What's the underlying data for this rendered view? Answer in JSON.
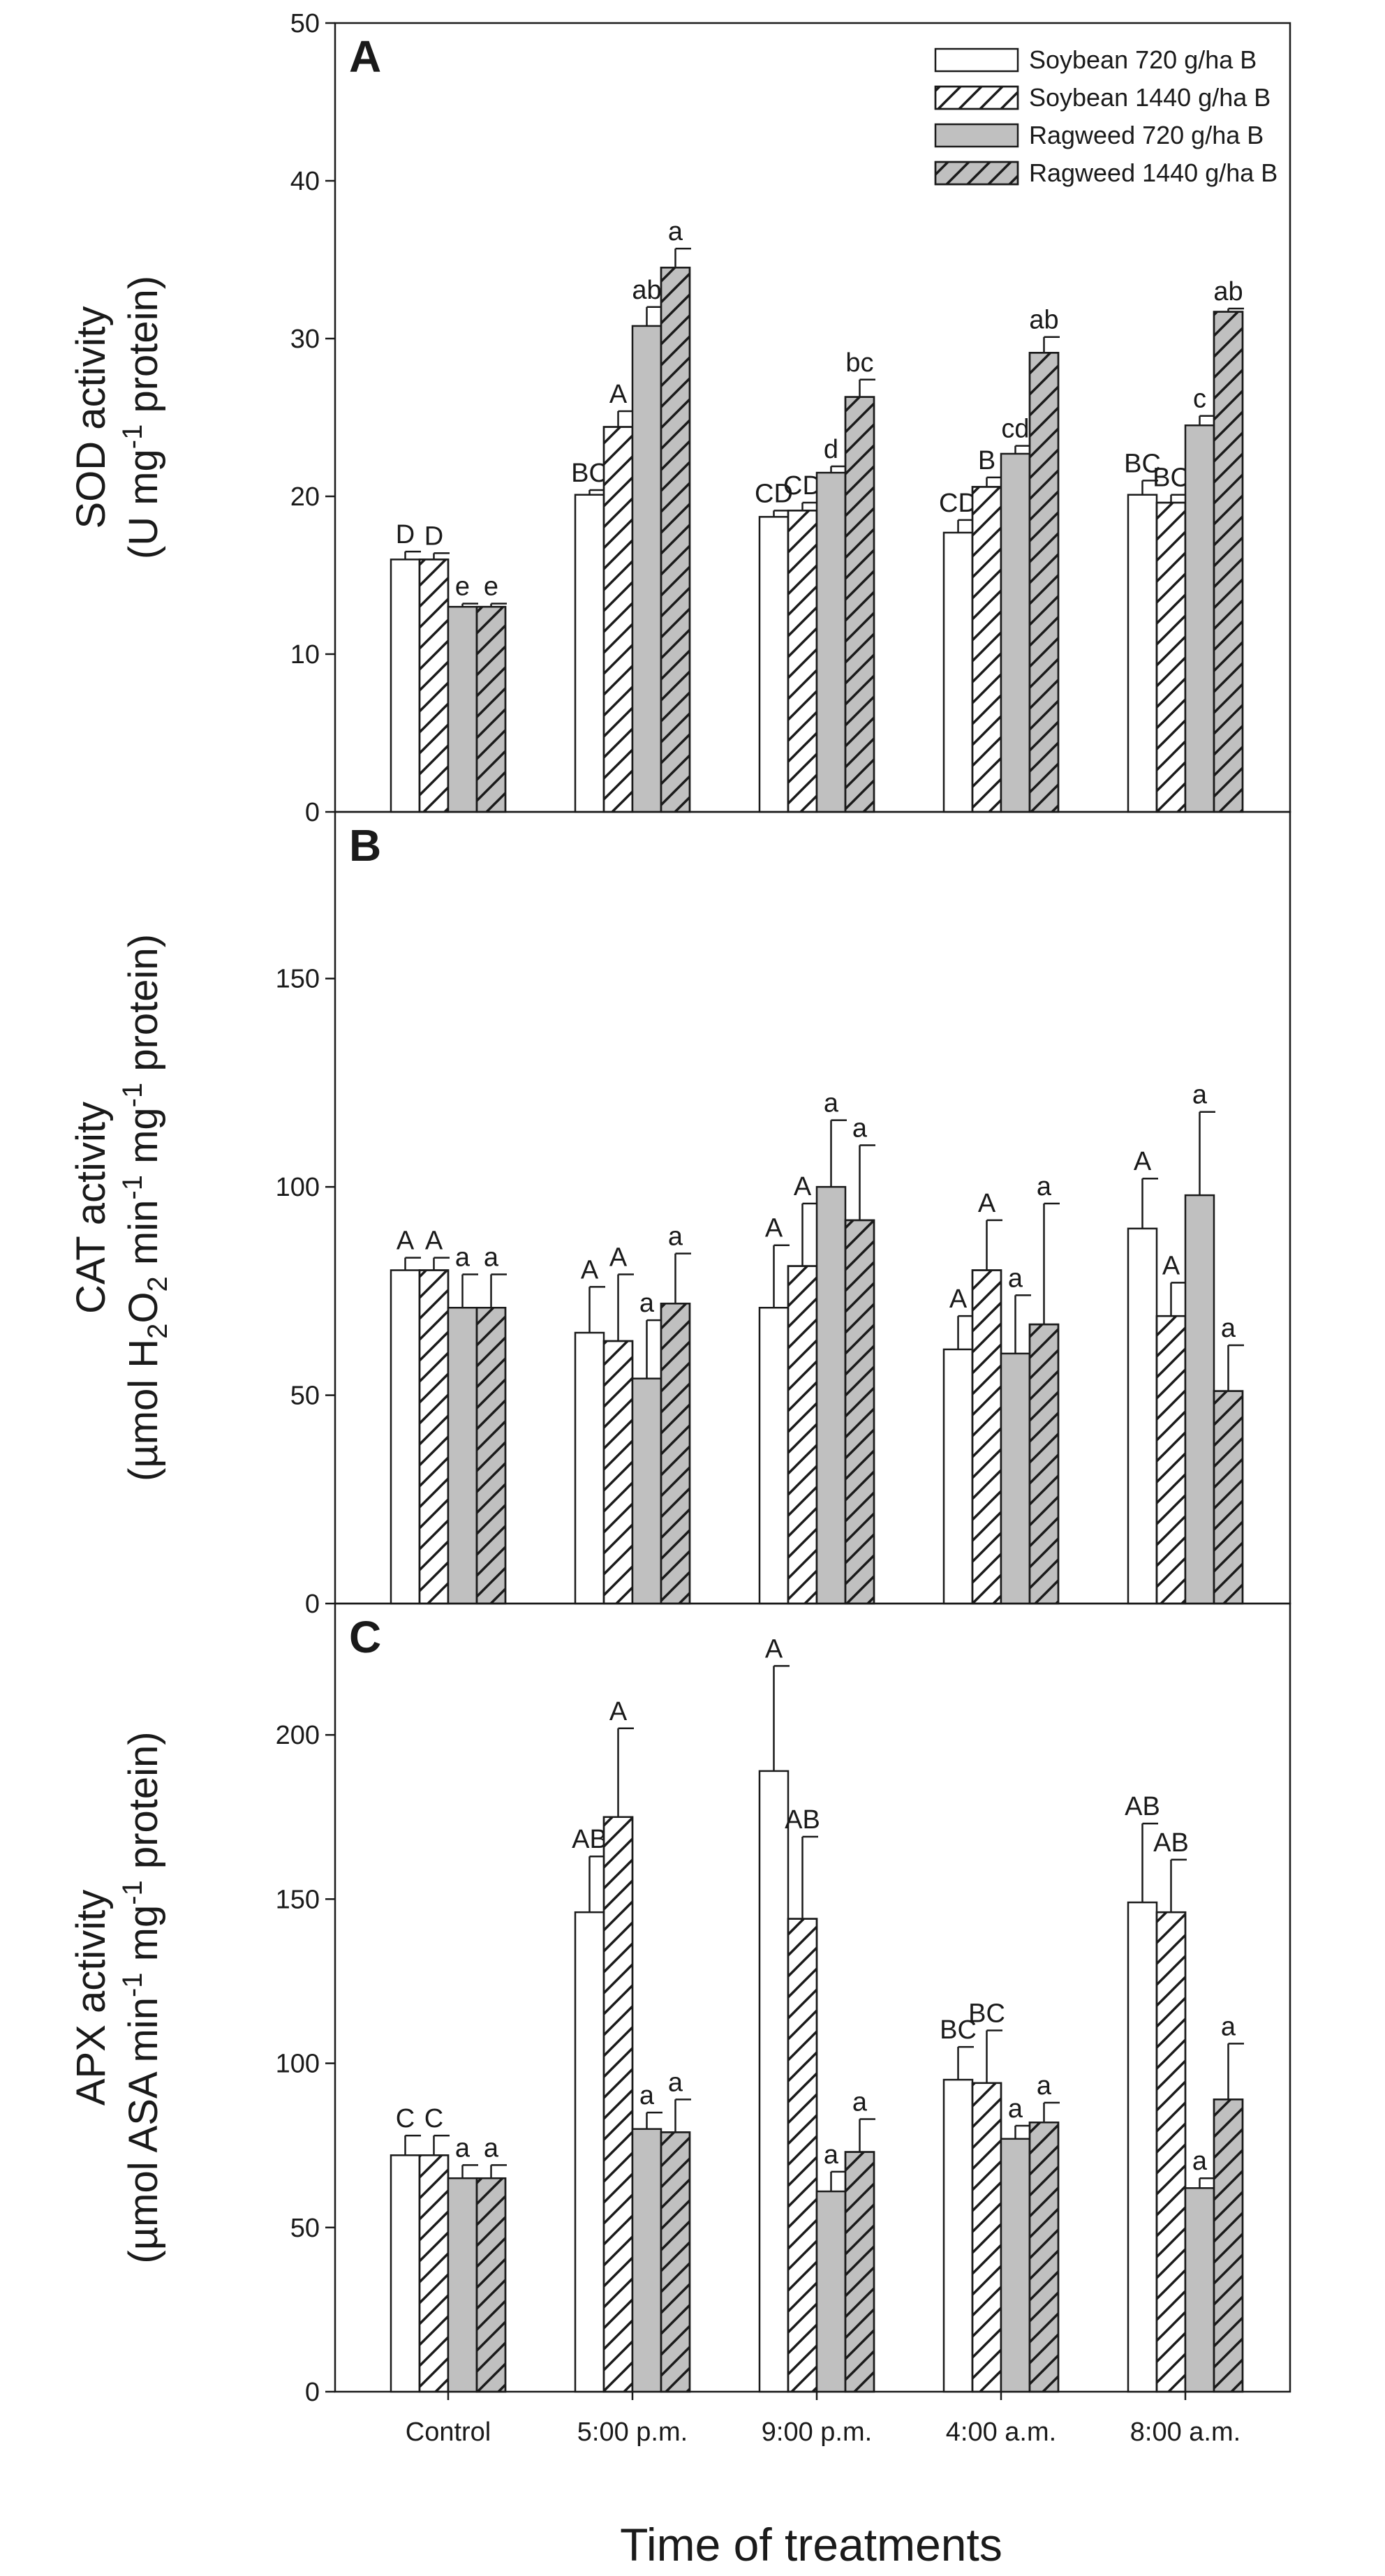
{
  "chart_data": [
    {
      "type": "bar",
      "panel": "A",
      "ylabel_line1": "SOD activity",
      "ylabel_line2": "(U mg-1 protein)",
      "ylim": [
        0,
        50
      ],
      "yticks": [
        0,
        10,
        20,
        30,
        40,
        50
      ],
      "categories": [
        "Control",
        "5:00 p.m.",
        "9:00 p.m.",
        "4:00 a.m.",
        "8:00 a.m."
      ],
      "series": [
        {
          "name": "Soybean 720 g/ha B",
          "values": [
            16.0,
            20.1,
            18.7,
            17.7,
            20.1
          ],
          "errors": [
            0.5,
            0.3,
            0.4,
            0.8,
            0.9
          ],
          "letters": [
            "D",
            "BC",
            "CD",
            "CD",
            "BC"
          ]
        },
        {
          "name": "Soybean 1440 g/ha B",
          "values": [
            16.0,
            24.4,
            19.1,
            20.6,
            19.6
          ],
          "errors": [
            0.4,
            1.0,
            0.5,
            0.6,
            0.5
          ],
          "letters": [
            "D",
            "A",
            "CD",
            "B",
            "BC"
          ]
        },
        {
          "name": "Ragweed 720 g/ha B",
          "values": [
            13.0,
            30.8,
            21.5,
            22.7,
            24.5
          ],
          "errors": [
            0.2,
            1.2,
            0.4,
            0.5,
            0.6
          ],
          "letters": [
            "e",
            "ab",
            "d",
            "cd",
            "c"
          ]
        },
        {
          "name": "Ragweed 1440 g/ha B",
          "values": [
            13.0,
            34.5,
            26.3,
            29.1,
            31.7
          ],
          "errors": [
            0.2,
            1.2,
            1.1,
            1.0,
            0.2
          ],
          "letters": [
            "e",
            "a",
            "bc",
            "ab",
            "ab"
          ]
        }
      ]
    },
    {
      "type": "bar",
      "panel": "B",
      "ylabel_line1": "CAT activity",
      "ylabel_line2": "(µmol H2O2 min-1 mg-1 protein)",
      "ylim": [
        0,
        190
      ],
      "yticks": [
        0,
        50,
        100,
        150
      ],
      "categories": [
        "Control",
        "5:00 p.m.",
        "9:00 p.m.",
        "4:00 a.m.",
        "8:00 a.m."
      ],
      "series": [
        {
          "name": "Soybean 720 g/ha B",
          "values": [
            80,
            65,
            71,
            61,
            90
          ],
          "errors": [
            3,
            11,
            15,
            8,
            12
          ],
          "letters": [
            "A",
            "A",
            "A",
            "A",
            "A"
          ]
        },
        {
          "name": "Soybean 1440 g/ha B",
          "values": [
            80,
            63,
            81,
            80,
            69
          ],
          "errors": [
            3,
            16,
            15,
            12,
            8
          ],
          "letters": [
            "A",
            "A",
            "A",
            "A",
            "A"
          ]
        },
        {
          "name": "Ragweed 720 g/ha B",
          "values": [
            71,
            54,
            100,
            60,
            98
          ],
          "errors": [
            8,
            14,
            16,
            14,
            20
          ],
          "letters": [
            "a",
            "a",
            "a",
            "a",
            "a"
          ]
        },
        {
          "name": "Ragweed 1440 g/ha B",
          "values": [
            71,
            72,
            92,
            67,
            51
          ],
          "errors": [
            8,
            12,
            18,
            29,
            11
          ],
          "letters": [
            "a",
            "a",
            "a",
            "a",
            "a"
          ]
        }
      ]
    },
    {
      "type": "bar",
      "panel": "C",
      "ylabel_line1": "APX activity",
      "ylabel_line2": "(µmol ASA min-1 mg-1 protein)",
      "xlabel": "Time of treatments",
      "ylim": [
        0,
        240
      ],
      "yticks": [
        0,
        50,
        100,
        150,
        200
      ],
      "categories": [
        "Control",
        "5:00 p.m.",
        "9:00 p.m.",
        "4:00 a.m.",
        "8:00 a.m."
      ],
      "series": [
        {
          "name": "Soybean 720 g/ha B",
          "values": [
            72,
            146,
            189,
            95,
            149
          ],
          "errors": [
            6,
            17,
            32,
            10,
            24
          ],
          "letters": [
            "C",
            "AB",
            "A",
            "BC",
            "AB"
          ]
        },
        {
          "name": "Soybean 1440 g/ha B",
          "values": [
            72,
            175,
            144,
            94,
            146
          ],
          "errors": [
            6,
            27,
            25,
            16,
            16
          ],
          "letters": [
            "C",
            "A",
            "AB",
            "BC",
            "AB"
          ]
        },
        {
          "name": "Ragweed 720 g/ha B",
          "values": [
            65,
            80,
            61,
            77,
            62
          ],
          "errors": [
            4,
            5,
            6,
            4,
            3
          ],
          "letters": [
            "a",
            "a",
            "a",
            "a",
            "a"
          ]
        },
        {
          "name": "Ragweed 1440 g/ha B",
          "values": [
            65,
            79,
            73,
            82,
            89
          ],
          "errors": [
            4,
            10,
            10,
            6,
            17
          ],
          "letters": [
            "a",
            "a",
            "a",
            "a",
            "a"
          ]
        }
      ]
    }
  ],
  "legend": [
    {
      "label": "Soybean 720 g/ha B",
      "fill": "#ffffff",
      "hatch": false
    },
    {
      "label": "Soybean 1440 g/ha B",
      "fill": "#ffffff",
      "hatch": true
    },
    {
      "label": "Ragweed 720 g/ha B",
      "fill": "#c0c0c0",
      "hatch": false
    },
    {
      "label": "Ragweed 1440 g/ha B",
      "fill": "#c0c0c0",
      "hatch": true
    }
  ],
  "colors": {
    "soybean_fill": "#ffffff",
    "ragweed_fill": "#c0c0c0",
    "stroke": "#1a1a1a"
  },
  "legend_position": "top-right"
}
